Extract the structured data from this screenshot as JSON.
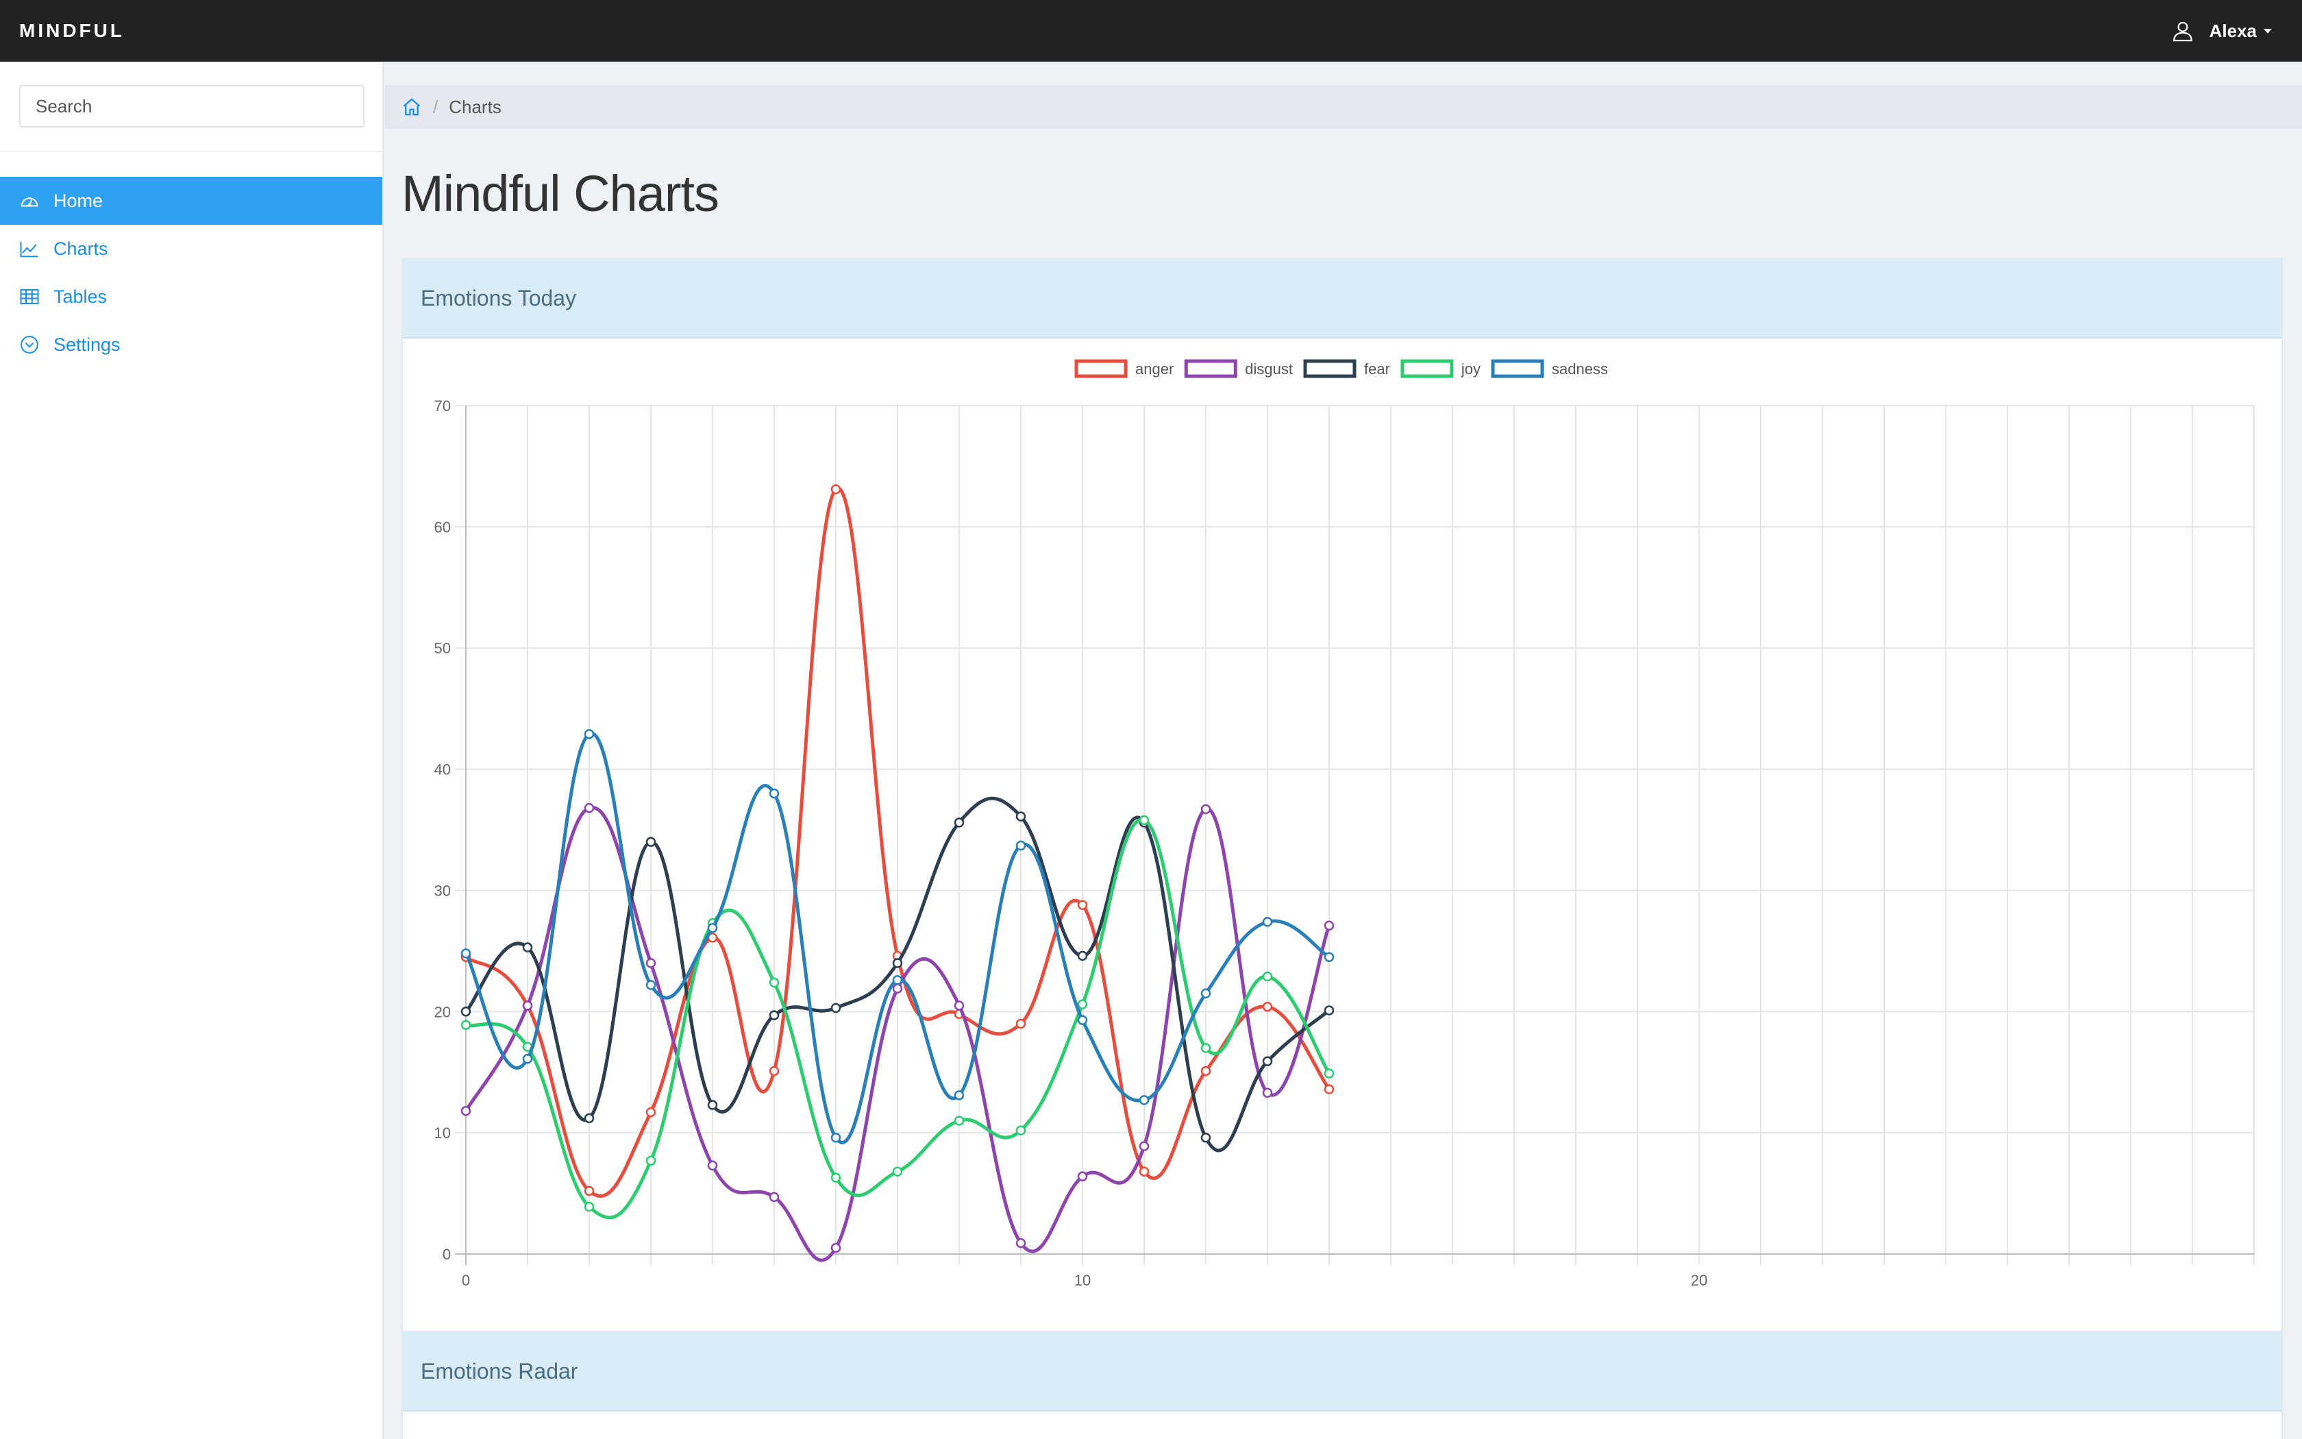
{
  "navbar": {
    "brand": "MINDFUL",
    "user_name": "Alexa"
  },
  "sidebar": {
    "search_placeholder": "Search",
    "items": [
      {
        "label": "Home",
        "icon": "dashboard-icon",
        "active": true
      },
      {
        "label": "Charts",
        "icon": "line-chart-icon",
        "active": false
      },
      {
        "label": "Tables",
        "icon": "table-icon",
        "active": false
      },
      {
        "label": "Settings",
        "icon": "chevron-circle-down-icon",
        "active": false
      }
    ]
  },
  "breadcrumb": {
    "current": "Charts"
  },
  "page": {
    "title": "Mindful Charts"
  },
  "panels": {
    "emotions_today": "Emotions Today",
    "emotions_radar": "Emotions Radar"
  },
  "chart_data": {
    "type": "line",
    "title": "",
    "xlabel": "",
    "ylabel": "",
    "xlim": [
      0,
      29
    ],
    "ylim": [
      0,
      70
    ],
    "x_ticks": [
      0,
      10,
      20
    ],
    "y_ticks": [
      0,
      10,
      20,
      30,
      40,
      50,
      60,
      70
    ],
    "grid": true,
    "legend_position": "top",
    "x": [
      0,
      1,
      2,
      3,
      4,
      5,
      6,
      7,
      8,
      9,
      10,
      11,
      12,
      13,
      14
    ],
    "series": [
      {
        "name": "anger",
        "color": "#e74c3c",
        "values": [
          24.5,
          20.5,
          5.2,
          11.7,
          26.1,
          15.1,
          63.1,
          24.6,
          19.8,
          19.0,
          28.8,
          6.8,
          15.1,
          20.4,
          13.6
        ]
      },
      {
        "name": "disgust",
        "color": "#8e44ad",
        "values": [
          11.8,
          20.5,
          36.8,
          24.0,
          7.3,
          4.7,
          0.5,
          21.9,
          20.5,
          0.9,
          6.4,
          8.9,
          36.7,
          13.3,
          27.1
        ]
      },
      {
        "name": "fear",
        "color": "#2c3e50",
        "values": [
          20.0,
          25.3,
          11.2,
          34.0,
          12.3,
          19.7,
          20.3,
          24.0,
          35.6,
          36.1,
          24.6,
          35.6,
          9.6,
          15.9,
          20.1
        ]
      },
      {
        "name": "joy",
        "color": "#2ecc71",
        "values": [
          18.9,
          17.1,
          3.9,
          7.7,
          27.3,
          22.4,
          6.3,
          6.8,
          11.0,
          10.2,
          20.6,
          35.8,
          17.0,
          22.9,
          14.9
        ]
      },
      {
        "name": "sadness",
        "color": "#2980b9",
        "values": [
          24.8,
          16.1,
          42.9,
          22.2,
          26.9,
          38.0,
          9.6,
          22.6,
          13.1,
          33.7,
          19.3,
          12.7,
          21.5,
          27.4,
          24.5
        ]
      }
    ]
  }
}
